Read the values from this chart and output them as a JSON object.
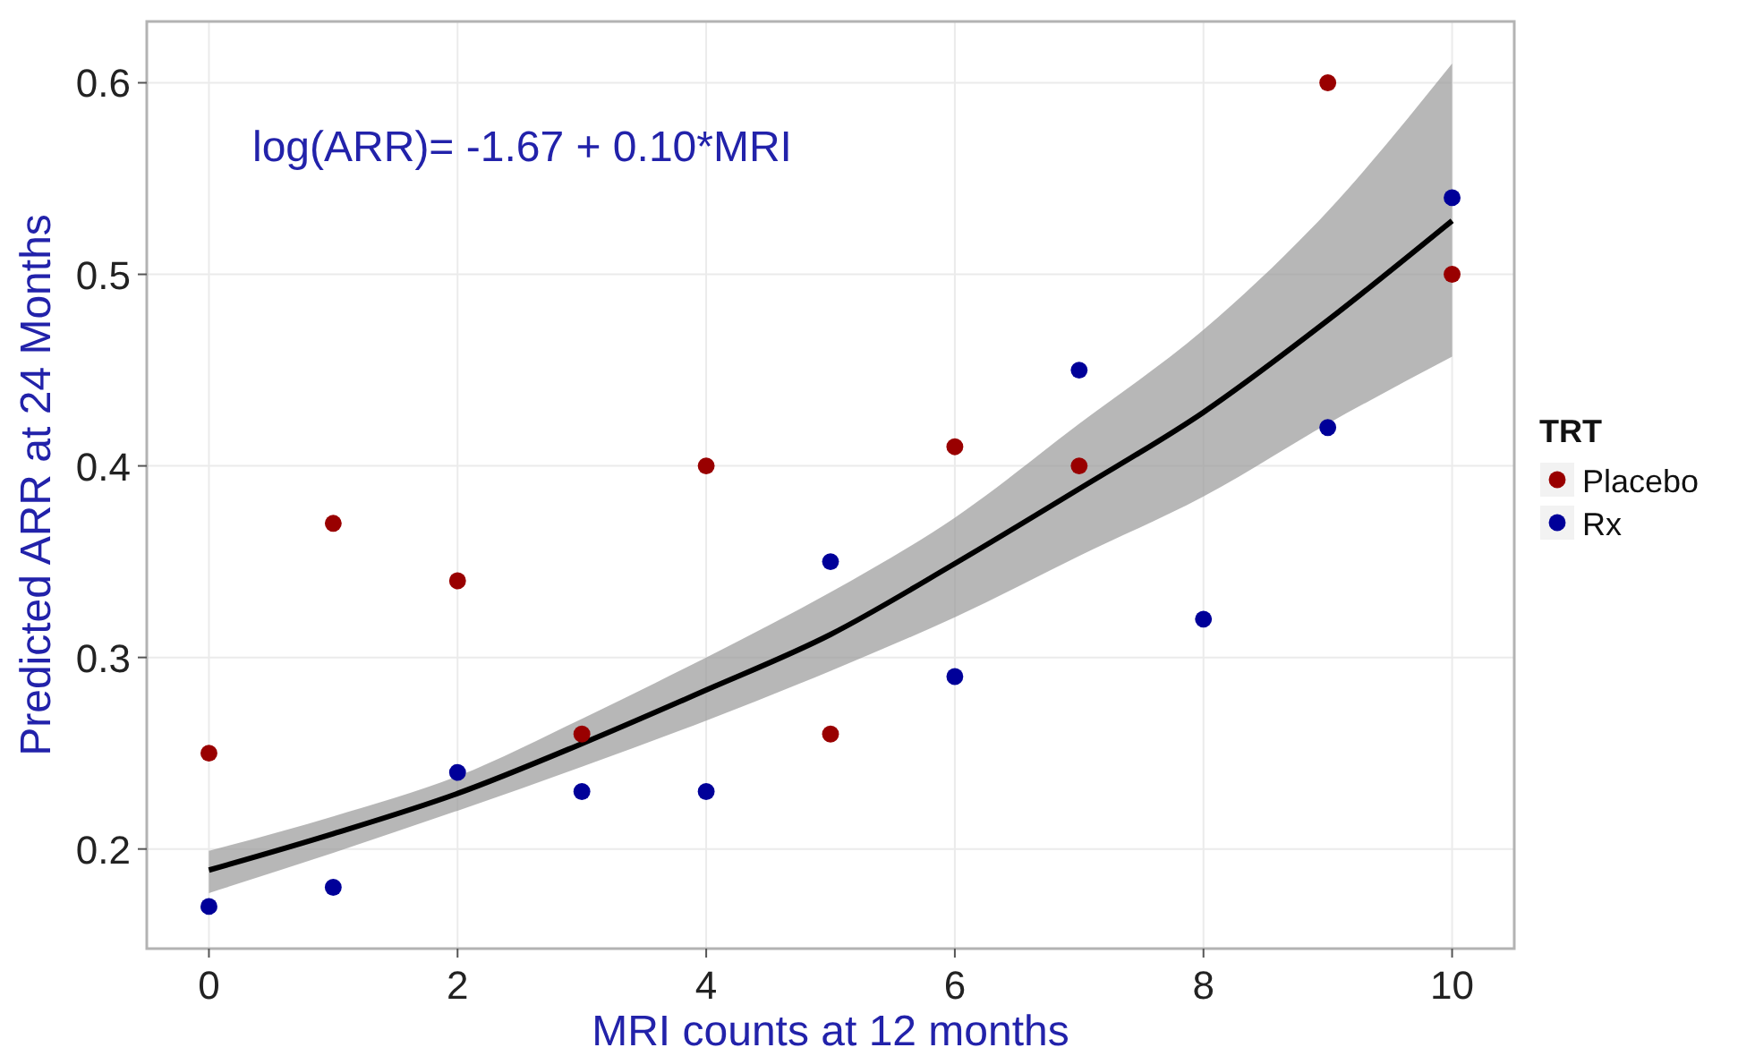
{
  "chart_data": {
    "type": "scatter",
    "xlabel": "MRI counts at 12 months",
    "ylabel": "Predicted ARR at 24 Months",
    "legend_title": "TRT",
    "annotations": [
      "log(ARR)= -1.67 + 0.10*MRI"
    ],
    "xlim": [
      -0.5,
      10.5
    ],
    "xticks": [
      0,
      2,
      4,
      6,
      8,
      10
    ],
    "ylim": [
      0.148,
      0.632
    ],
    "yticks": [
      0.2,
      0.3,
      0.4,
      0.5,
      0.6
    ],
    "grid": true,
    "legend": "right",
    "marker": "circle",
    "series": [
      {
        "name": "Placebo",
        "color": "#990000",
        "x": [
          0,
          1,
          2,
          3,
          4,
          5,
          6,
          7,
          9,
          10
        ],
        "values": [
          0.25,
          0.37,
          0.34,
          0.26,
          0.4,
          0.26,
          0.41,
          0.4,
          0.6,
          0.5
        ]
      },
      {
        "name": "Rx",
        "color": "#000099",
        "x": [
          0,
          1,
          2,
          3,
          4,
          5,
          6,
          7,
          8,
          9,
          10
        ],
        "values": [
          0.17,
          0.18,
          0.24,
          0.23,
          0.23,
          0.35,
          0.29,
          0.45,
          0.32,
          0.42,
          0.54
        ]
      },
      {
        "type": "line",
        "marker": "none",
        "color": "#000000",
        "x": [
          0,
          1,
          2,
          3,
          4,
          5,
          6,
          7,
          8,
          9,
          10
        ],
        "values": [
          0.189,
          0.208,
          0.229,
          0.255,
          0.283,
          0.312,
          0.349,
          0.388,
          0.428,
          0.476,
          0.528
        ],
        "lower": [
          0.177,
          0.198,
          0.22,
          0.243,
          0.267,
          0.293,
          0.321,
          0.353,
          0.384,
          0.422,
          0.457
        ],
        "upper": [
          0.199,
          0.217,
          0.238,
          0.268,
          0.3,
          0.334,
          0.373,
          0.422,
          0.471,
          0.533,
          0.61
        ]
      }
    ]
  }
}
